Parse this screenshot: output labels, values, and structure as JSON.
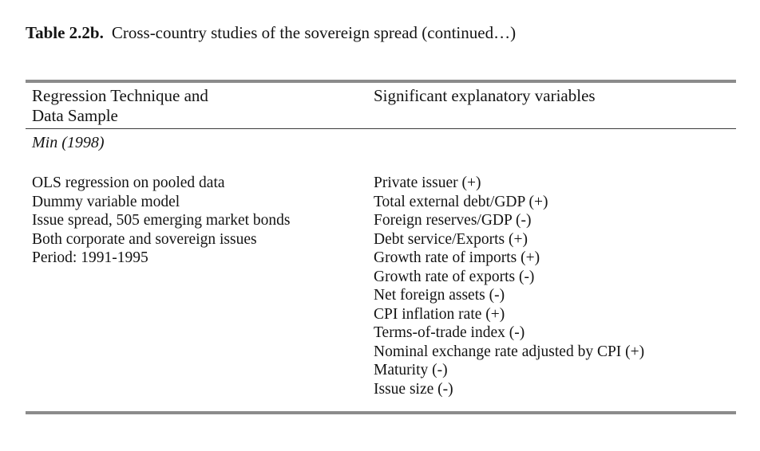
{
  "page": {
    "title_label": "Table 2.2b.",
    "title_text": "Cross-country studies of the sovereign spread (continued…)"
  },
  "table": {
    "header_left": "Regression Technique and\nData Sample",
    "header_right": "Significant explanatory variables",
    "study": "Min (1998)",
    "regression_items": [
      "OLS regression on pooled data",
      "Dummy variable model",
      "Issue spread, 505 emerging market bonds",
      "Both corporate and sovereign issues",
      "Period: 1991-1995"
    ],
    "explanatory_items": [
      "Private issuer (+)",
      "Total external debt/GDP (+)",
      "Foreign reserves/GDP (-)",
      "Debt service/Exports (+)",
      "Growth rate of imports (+)",
      "Growth rate of exports (-)",
      "Net foreign assets (-)",
      "CPI inflation rate (+)",
      "Terms-of-trade index (-)",
      "Nominal exchange rate adjusted by CPI (+)",
      "Maturity (-)",
      "Issue size (-)"
    ]
  }
}
